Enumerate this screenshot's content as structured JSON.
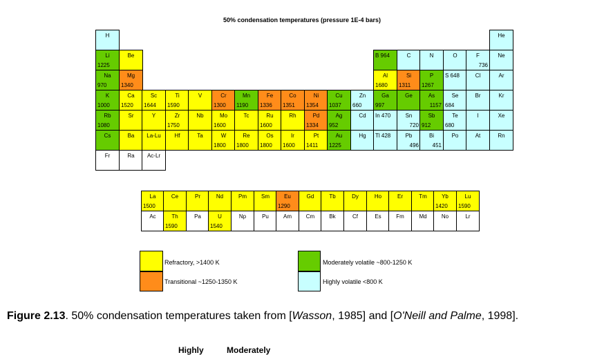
{
  "chart_data": {
    "type": "table",
    "title": "50% condensation temperatures (pressure 1E-4 bars)",
    "unit": "K",
    "categories": {
      "r": "Refractory, >1400 K",
      "t": "Transitional ~1250-1350 K",
      "m": "Moderately volatile ~800-1250 K",
      "h": "Highly volatile <800 K"
    },
    "elements": [
      {
        "s": "H",
        "row": 0,
        "col": 0,
        "cat": "h"
      },
      {
        "s": "He",
        "row": 0,
        "col": 17,
        "cat": "h"
      },
      {
        "s": "Li",
        "v": 1225,
        "row": 1,
        "col": 0,
        "cat": "m"
      },
      {
        "s": "Be",
        "row": 1,
        "col": 1,
        "cat": "r"
      },
      {
        "s": "B 964",
        "row": 1,
        "col": 12,
        "cat": "m",
        "inline": true
      },
      {
        "s": "C",
        "row": 1,
        "col": 13,
        "cat": "h"
      },
      {
        "s": "N",
        "row": 1,
        "col": 14,
        "cat": "h"
      },
      {
        "s": "O",
        "row": 1,
        "col": 15,
        "cat": "h"
      },
      {
        "s": "F",
        "v": 736,
        "row": 1,
        "col": 16,
        "cat": "h",
        "tright": true
      },
      {
        "s": "Ne",
        "row": 1,
        "col": 17,
        "cat": "h"
      },
      {
        "s": "Na",
        "v": 970,
        "row": 2,
        "col": 0,
        "cat": "m"
      },
      {
        "s": "Mg",
        "v": 1340,
        "row": 2,
        "col": 1,
        "cat": "t"
      },
      {
        "s": "Al",
        "v": 1680,
        "row": 2,
        "col": 12,
        "cat": "r"
      },
      {
        "s": "Si",
        "v": 1311,
        "row": 2,
        "col": 13,
        "cat": "t"
      },
      {
        "s": "P",
        "v": 1267,
        "row": 2,
        "col": 14,
        "cat": "m"
      },
      {
        "s": "S 648",
        "row": 2,
        "col": 15,
        "cat": "h",
        "inline": true
      },
      {
        "s": "Cl",
        "row": 2,
        "col": 16,
        "cat": "h"
      },
      {
        "s": "Ar",
        "row": 2,
        "col": 17,
        "cat": "h"
      },
      {
        "s": "K",
        "v": 1000,
        "row": 3,
        "col": 0,
        "cat": "m"
      },
      {
        "s": "Ca",
        "v": 1520,
        "row": 3,
        "col": 1,
        "cat": "r"
      },
      {
        "s": "Sc",
        "v": 1644,
        "row": 3,
        "col": 2,
        "cat": "r"
      },
      {
        "s": "Ti",
        "v": 1590,
        "row": 3,
        "col": 3,
        "cat": "r"
      },
      {
        "s": "V",
        "row": 3,
        "col": 4,
        "cat": "r"
      },
      {
        "s": "Cr",
        "v": 1300,
        "row": 3,
        "col": 5,
        "cat": "t"
      },
      {
        "s": "Mn",
        "v": 1190,
        "row": 3,
        "col": 6,
        "cat": "m"
      },
      {
        "s": "Fe",
        "v": 1336,
        "row": 3,
        "col": 7,
        "cat": "t"
      },
      {
        "s": "Co",
        "v": 1351,
        "row": 3,
        "col": 8,
        "cat": "t"
      },
      {
        "s": "Ni",
        "v": 1354,
        "row": 3,
        "col": 9,
        "cat": "t"
      },
      {
        "s": "Cu",
        "v": 1037,
        "row": 3,
        "col": 10,
        "cat": "m"
      },
      {
        "s": "Zn",
        "v": 660,
        "row": 3,
        "col": 11,
        "cat": "h"
      },
      {
        "s": "Ga",
        "v": 997,
        "row": 3,
        "col": 12,
        "cat": "m"
      },
      {
        "s": "Ge",
        "row": 3,
        "col": 13,
        "cat": "m"
      },
      {
        "s": "As",
        "v": 1157,
        "row": 3,
        "col": 14,
        "cat": "m",
        "tright": true
      },
      {
        "s": "Se",
        "v": 684,
        "row": 3,
        "col": 15,
        "cat": "h"
      },
      {
        "s": "Br",
        "row": 3,
        "col": 16,
        "cat": "h"
      },
      {
        "s": "Kr",
        "row": 3,
        "col": 17,
        "cat": "h"
      },
      {
        "s": "Rb",
        "v": 1080,
        "row": 4,
        "col": 0,
        "cat": "m"
      },
      {
        "s": "Sr",
        "row": 4,
        "col": 1,
        "cat": "r"
      },
      {
        "s": "Y",
        "row": 4,
        "col": 2,
        "cat": "r"
      },
      {
        "s": "Zr",
        "v": 1750,
        "row": 4,
        "col": 3,
        "cat": "r"
      },
      {
        "s": "Nb",
        "row": 4,
        "col": 4,
        "cat": "r"
      },
      {
        "s": "Mo",
        "v": 1600,
        "row": 4,
        "col": 5,
        "cat": "r"
      },
      {
        "s": "Tc",
        "row": 4,
        "col": 6,
        "cat": "r"
      },
      {
        "s": "Ru",
        "v": 1600,
        "row": 4,
        "col": 7,
        "cat": "r"
      },
      {
        "s": "Rh",
        "row": 4,
        "col": 8,
        "cat": "r"
      },
      {
        "s": "Pd",
        "v": 1334,
        "row": 4,
        "col": 9,
        "cat": "t"
      },
      {
        "s": "Ag",
        "v": 952,
        "row": 4,
        "col": 10,
        "cat": "m"
      },
      {
        "s": "Cd",
        "row": 4,
        "col": 11,
        "cat": "h"
      },
      {
        "s": "In 470",
        "row": 4,
        "col": 12,
        "cat": "h",
        "inline": true
      },
      {
        "s": "Sn",
        "v": 720,
        "row": 4,
        "col": 13,
        "cat": "h",
        "tright": true
      },
      {
        "s": "Sb",
        "v": 912,
        "row": 4,
        "col": 14,
        "cat": "m"
      },
      {
        "s": "Te",
        "v": 680,
        "row": 4,
        "col": 15,
        "cat": "h"
      },
      {
        "s": "I",
        "row": 4,
        "col": 16,
        "cat": "h"
      },
      {
        "s": "Xe",
        "row": 4,
        "col": 17,
        "cat": "h"
      },
      {
        "s": "Cs",
        "row": 5,
        "col": 0,
        "cat": "m"
      },
      {
        "s": "Ba",
        "row": 5,
        "col": 1,
        "cat": "r"
      },
      {
        "s": "La-Lu",
        "row": 5,
        "col": 2,
        "cat": "r"
      },
      {
        "s": "Hf",
        "row": 5,
        "col": 3,
        "cat": "r"
      },
      {
        "s": "Ta",
        "row": 5,
        "col": 4,
        "cat": "r"
      },
      {
        "s": "W",
        "v": 1800,
        "row": 5,
        "col": 5,
        "cat": "r"
      },
      {
        "s": "Re",
        "v": 1800,
        "row": 5,
        "col": 6,
        "cat": "r"
      },
      {
        "s": "Os",
        "v": 1800,
        "row": 5,
        "col": 7,
        "cat": "r"
      },
      {
        "s": "Ir",
        "v": 1600,
        "row": 5,
        "col": 8,
        "cat": "r"
      },
      {
        "s": "Pt",
        "v": 1411,
        "row": 5,
        "col": 9,
        "cat": "r"
      },
      {
        "s": "Au",
        "v": 1225,
        "row": 5,
        "col": 10,
        "cat": "m"
      },
      {
        "s": "Hg",
        "row": 5,
        "col": 11,
        "cat": "h"
      },
      {
        "s": "Tl 428",
        "row": 5,
        "col": 12,
        "cat": "h",
        "inline": true
      },
      {
        "s": "Pb",
        "v": 496,
        "row": 5,
        "col": 13,
        "cat": "h",
        "tright": true
      },
      {
        "s": "Bi",
        "v": 451,
        "row": 5,
        "col": 14,
        "cat": "h",
        "tright": true
      },
      {
        "s": "Po",
        "row": 5,
        "col": 15,
        "cat": "h"
      },
      {
        "s": "At",
        "row": 5,
        "col": 16,
        "cat": "h"
      },
      {
        "s": "Rn",
        "row": 5,
        "col": 17,
        "cat": "h"
      },
      {
        "s": "Fr",
        "row": 6,
        "col": 0,
        "cat": "w"
      },
      {
        "s": "Ra",
        "row": 6,
        "col": 1,
        "cat": "w"
      },
      {
        "s": "Ac-Lr",
        "row": 6,
        "col": 2,
        "cat": "w"
      }
    ],
    "lanthanides": [
      {
        "s": "La",
        "v": 1500,
        "cat": "r"
      },
      {
        "s": "Ce",
        "cat": "r"
      },
      {
        "s": "Pr",
        "cat": "r"
      },
      {
        "s": "Nd",
        "cat": "r"
      },
      {
        "s": "Pm",
        "cat": "r"
      },
      {
        "s": "Sm",
        "cat": "r"
      },
      {
        "s": "Eu",
        "v": 1290,
        "cat": "t"
      },
      {
        "s": "Gd",
        "cat": "r"
      },
      {
        "s": "Tb",
        "cat": "r"
      },
      {
        "s": "Dy",
        "cat": "r"
      },
      {
        "s": "Ho",
        "cat": "r"
      },
      {
        "s": "Er",
        "cat": "r"
      },
      {
        "s": "Tm",
        "cat": "r"
      },
      {
        "s": "Yb",
        "v": 1420,
        "cat": "r"
      },
      {
        "s": "Lu",
        "v": 1590,
        "cat": "r"
      }
    ],
    "actinides": [
      {
        "s": "Ac",
        "cat": "w"
      },
      {
        "s": "Th",
        "v": 1590,
        "cat": "r"
      },
      {
        "s": "Pa",
        "cat": "w"
      },
      {
        "s": "U",
        "v": 1540,
        "cat": "r"
      },
      {
        "s": "Np",
        "cat": "w"
      },
      {
        "s": "Pu",
        "cat": "w"
      },
      {
        "s": "Am",
        "cat": "w"
      },
      {
        "s": "Cm",
        "cat": "w"
      },
      {
        "s": "Bk",
        "cat": "w"
      },
      {
        "s": "Cf",
        "cat": "w"
      },
      {
        "s": "Es",
        "cat": "w"
      },
      {
        "s": "Fm",
        "cat": "w"
      },
      {
        "s": "Md",
        "cat": "w"
      },
      {
        "s": "No",
        "cat": "w"
      },
      {
        "s": "Lr",
        "cat": "w"
      }
    ]
  },
  "colors": {
    "refractory": "#ffff00",
    "transitional": "#ff8c1a",
    "moderately_volatile": "#66cc00",
    "highly_volatile": "#c8ffff"
  },
  "legend": {
    "refractory": "Refractory, >1400 K",
    "transitional": "Transitional ~1250-1350 K",
    "moderate": "Moderately volatile ~800-1250 K",
    "high": "Highly volatile <800 K"
  },
  "caption": {
    "label": "Figure 2.13",
    "text_before": ".  50% condensation temperatures taken from [",
    "ref1": "Wasson",
    "text_mid": ", 1985] and [",
    "ref2": "O'Neill and Palme",
    "text_after": ", 1998]."
  },
  "cutoff_text": "Highly          Moderately"
}
